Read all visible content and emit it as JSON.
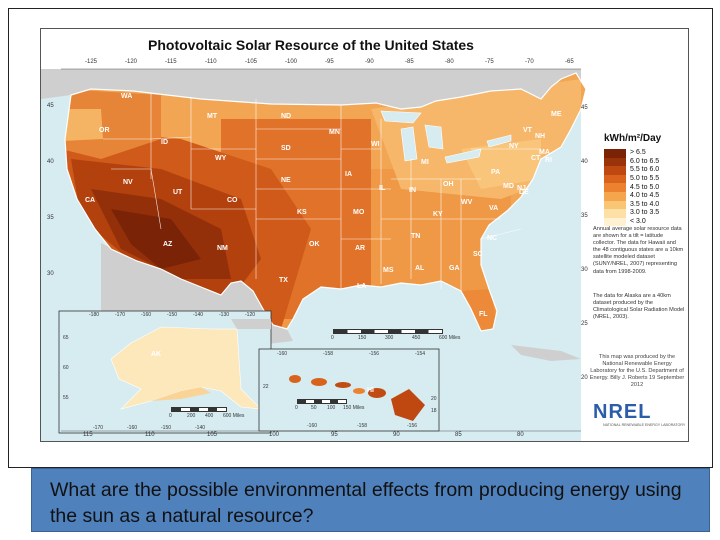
{
  "map": {
    "title": "Photovoltaic Solar Resource of the United States",
    "legend": {
      "title": "kWh/m²/Day",
      "items": [
        {
          "label": "> 6.5",
          "color": "#7a2306"
        },
        {
          "label": "6.0 to 6.5",
          "color": "#9a320a"
        },
        {
          "label": "5.5 to 6.0",
          "color": "#bf4810"
        },
        {
          "label": "5.0 to 5.5",
          "color": "#d9631c"
        },
        {
          "label": "4.5 to 5.0",
          "color": "#ec8230"
        },
        {
          "label": "4.0 to 4.5",
          "color": "#f5a54c"
        },
        {
          "label": "3.5 to 4.0",
          "color": "#f9c676"
        },
        {
          "label": "3.0 to 3.5",
          "color": "#fde0a6"
        },
        {
          "label": "< 3.0",
          "color": "#fff1d2"
        }
      ]
    },
    "note_contiguous": "Annual average solar resource data are shown for a tilt = latitude collector. The data for Hawaii and the 48 contiguous states are a 10km satellite modeled dataset (SUNY/NREL, 2007) representing data from 1998-2009.",
    "note_alaska": "The data for Alaska are a 40km dataset produced by the Climatological Solar Radiation Model (NREL, 2003).",
    "credit": "This map was produced by the National Renewable Energy Laboratory for the U.S. Department of Energy. Billy J. Roberts 19 September 2012",
    "logo": "NREL",
    "logo_sub": "NATIONAL RENEWABLE ENERGY LABORATORY",
    "top_lon_labels": [
      "-125",
      "-120",
      "-115",
      "-110",
      "-105",
      "-100",
      "-95",
      "-90",
      "-85",
      "-80",
      "-75",
      "-70",
      "-65"
    ],
    "bottom_lon_labels": [
      "115",
      "110",
      "105",
      "100",
      "95",
      "90",
      "85",
      "80"
    ],
    "lat_labels_left": [
      "45",
      "40",
      "35",
      "30"
    ],
    "lat_labels_right": [
      "45",
      "40",
      "35",
      "30",
      "25",
      "20"
    ],
    "scale_contiguous": [
      "0",
      "150",
      "300",
      "450",
      "600 Miles"
    ],
    "scale_alaska": [
      "0",
      "200",
      "400",
      "600 Miles"
    ],
    "scale_hawaii": [
      "0",
      "50",
      "100",
      "150 Miles"
    ],
    "alaska_lon_labels": [
      "-180",
      "-170",
      "-160",
      "-150",
      "-140",
      "-130",
      "-120"
    ],
    "alaska_lon_labels_bottom": [
      "-170",
      "-160",
      "-150",
      "-140"
    ],
    "alaska_lat_labels": [
      "65",
      "60",
      "55"
    ],
    "hawaii_lon_labels": [
      "-160",
      "-158",
      "-156",
      "-154"
    ],
    "hawaii_lon_labels_bottom": [
      "-160",
      "-158",
      "-156"
    ],
    "hawaii_lat_labels": [
      "22",
      "20",
      "18"
    ],
    "state_labels": [
      "WA",
      "OR",
      "CA",
      "NV",
      "ID",
      "MT",
      "WY",
      "UT",
      "AZ",
      "CO",
      "NM",
      "ND",
      "SD",
      "NE",
      "KS",
      "OK",
      "TX",
      "MN",
      "IA",
      "MO",
      "AR",
      "LA",
      "WI",
      "IL",
      "MS",
      "MI",
      "IN",
      "KY",
      "TN",
      "AL",
      "OH",
      "GA",
      "FL",
      "WV",
      "VA",
      "NC",
      "SC",
      "PA",
      "NY",
      "VT",
      "NH",
      "ME",
      "MA",
      "CT",
      "RI",
      "NJ",
      "MD",
      "DE",
      "AK",
      "HI"
    ]
  },
  "caption": {
    "text": "What are the possible environmental effects from producing energy using the sun as a natural resource?"
  }
}
